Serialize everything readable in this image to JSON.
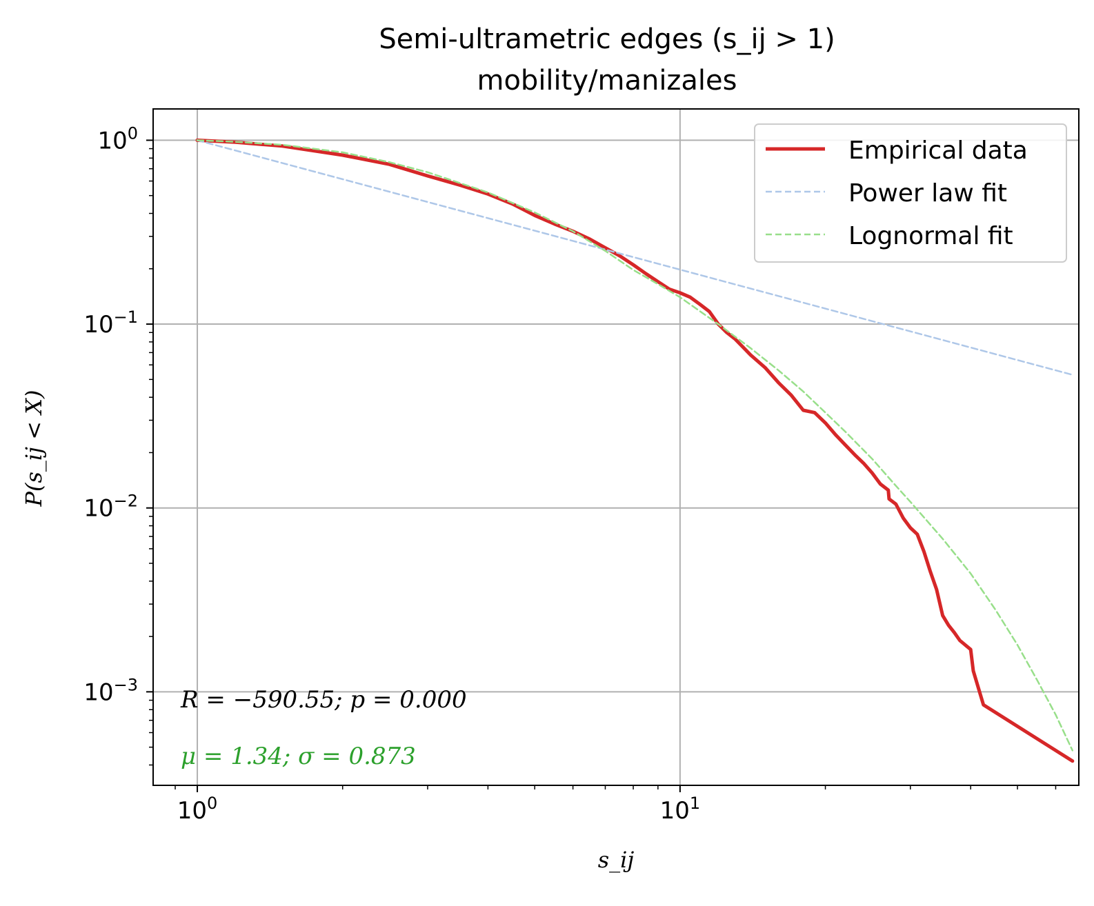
{
  "chart_data": {
    "type": "line",
    "title": "Semi-ultrametric edges (s_ij > 1)",
    "subtitle": "mobility/manizales",
    "xlabel": "s_ij",
    "ylabel": "P(s_ij < X)",
    "xscale": "log",
    "yscale": "log",
    "xlim": [
      0.81,
      67
    ],
    "ylim": [
      0.00031,
      1.48
    ],
    "grid": true,
    "legend_position": "top-right",
    "x_ticks": [
      {
        "value": 1,
        "base": "10",
        "exp": "0"
      },
      {
        "value": 10,
        "base": "10",
        "exp": "1"
      }
    ],
    "y_ticks": [
      {
        "value": 1,
        "base": "10",
        "exp": "0"
      },
      {
        "value": 0.1,
        "base": "10",
        "exp": "−1"
      },
      {
        "value": 0.01,
        "base": "10",
        "exp": "−2"
      },
      {
        "value": 0.001,
        "base": "10",
        "exp": "−3"
      }
    ],
    "series": [
      {
        "name": "Empirical data",
        "color": "#d62728",
        "style": "solid",
        "x": [
          1.0,
          1.2,
          1.5,
          2.0,
          2.5,
          3.0,
          3.5,
          4.0,
          4.5,
          5.0,
          5.5,
          6.0,
          6.5,
          7.0,
          7.5,
          8.0,
          8.5,
          9.0,
          9.5,
          10.0,
          10.5,
          11.0,
          11.5,
          12.0,
          12.5,
          13.0,
          14.0,
          15.0,
          16.0,
          17.0,
          18.0,
          19.0,
          20.0,
          21.0,
          22.0,
          23.0,
          24.0,
          25.0,
          26.0,
          27.0,
          27.1,
          28.0,
          29.0,
          30.0,
          31.0,
          32.0,
          33.0,
          34.0,
          35.0,
          36.0,
          37.0,
          38.0,
          40.0,
          40.5,
          42.5,
          65.0
        ],
        "y": [
          1.0,
          0.975,
          0.93,
          0.83,
          0.74,
          0.64,
          0.57,
          0.51,
          0.45,
          0.39,
          0.35,
          0.32,
          0.29,
          0.26,
          0.235,
          0.21,
          0.188,
          0.17,
          0.155,
          0.148,
          0.14,
          0.128,
          0.117,
          0.1,
          0.09,
          0.083,
          0.068,
          0.058,
          0.048,
          0.041,
          0.034,
          0.033,
          0.029,
          0.025,
          0.022,
          0.0195,
          0.0175,
          0.0155,
          0.0135,
          0.0125,
          0.0112,
          0.0105,
          0.0088,
          0.0078,
          0.0072,
          0.0058,
          0.0045,
          0.0036,
          0.0026,
          0.0023,
          0.0021,
          0.0019,
          0.0017,
          0.0013,
          0.00085,
          0.00042
        ]
      },
      {
        "name": "Power law fit",
        "color": "#aec7e8",
        "style": "dashed",
        "x": [
          1.0,
          65.0
        ],
        "y": [
          1.0,
          0.053
        ]
      },
      {
        "name": "Lognormal fit",
        "color": "#98df8a",
        "style": "dashed",
        "x": [
          1.0,
          1.2,
          1.5,
          2.0,
          2.5,
          3.0,
          4.0,
          5.0,
          6.0,
          7.0,
          8.0,
          9.0,
          10.0,
          12.0,
          14.0,
          16.0,
          18.0,
          20.0,
          22.0,
          25.0,
          28.0,
          30.0,
          35.0,
          40.0,
          45.0,
          50.0,
          55.0,
          60.0,
          65.0
        ],
        "y": [
          1.0,
          0.98,
          0.945,
          0.86,
          0.76,
          0.67,
          0.52,
          0.405,
          0.32,
          0.25,
          0.197,
          0.165,
          0.14,
          0.1,
          0.074,
          0.056,
          0.043,
          0.033,
          0.026,
          0.0185,
          0.0132,
          0.0108,
          0.0068,
          0.0044,
          0.0028,
          0.0018,
          0.00115,
          0.00075,
          0.00048
        ]
      }
    ],
    "annotations": [
      {
        "text": "R = −590.55; p = 0.000",
        "color": "#000000"
      },
      {
        "text": "μ = 1.34; σ = 0.873",
        "color": "#2ca02c"
      }
    ]
  }
}
